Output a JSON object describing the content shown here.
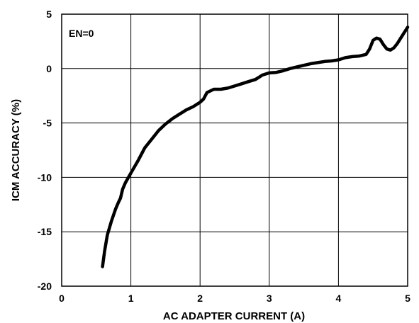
{
  "chart_data": {
    "type": "line",
    "title": "",
    "xlabel": "AC ADAPTER CURRENT (A)",
    "ylabel": "ICM ACCURACY (%)",
    "xlim": [
      0,
      5
    ],
    "ylim": [
      -20,
      5
    ],
    "x_ticks": [
      0,
      1,
      2,
      3,
      4,
      5
    ],
    "y_ticks": [
      -20,
      -15,
      -10,
      -5,
      0,
      5
    ],
    "x_tick_labels": [
      "0",
      "1",
      "2",
      "3",
      "4",
      "5"
    ],
    "y_tick_labels": [
      "-20",
      "-15",
      "-10",
      "-5",
      "0",
      "5"
    ],
    "grid": true,
    "annotation": "EN=0",
    "line_color": "#000000",
    "series": [
      {
        "x": [
          0.59,
          0.62,
          0.66,
          0.72,
          0.78,
          0.82,
          0.85,
          0.88,
          0.92,
          1.0,
          1.1,
          1.2,
          1.3,
          1.4,
          1.5,
          1.6,
          1.7,
          1.8,
          1.9,
          2.0,
          2.05,
          2.1,
          2.2,
          2.3,
          2.4,
          2.5,
          2.6,
          2.7,
          2.8,
          2.85,
          2.9,
          3.0,
          3.1,
          3.2,
          3.3,
          3.4,
          3.5,
          3.6,
          3.7,
          3.8,
          3.9,
          4.0,
          4.1,
          4.2,
          4.3,
          4.4,
          4.45,
          4.5,
          4.55,
          4.6,
          4.65,
          4.7,
          4.75,
          4.8,
          4.85,
          4.9,
          4.95,
          5.0
        ],
        "y": [
          -18.2,
          -16.8,
          -15.3,
          -14.0,
          -12.9,
          -12.3,
          -11.9,
          -11.1,
          -10.5,
          -9.6,
          -8.5,
          -7.3,
          -6.5,
          -5.7,
          -5.1,
          -4.6,
          -4.2,
          -3.8,
          -3.5,
          -3.1,
          -2.8,
          -2.2,
          -1.9,
          -1.9,
          -1.8,
          -1.6,
          -1.4,
          -1.2,
          -1.0,
          -0.8,
          -0.6,
          -0.4,
          -0.35,
          -0.2,
          0.0,
          0.15,
          0.3,
          0.45,
          0.55,
          0.65,
          0.7,
          0.8,
          1.0,
          1.1,
          1.15,
          1.3,
          1.8,
          2.6,
          2.8,
          2.7,
          2.2,
          1.8,
          1.7,
          1.9,
          2.3,
          2.8,
          3.3,
          3.8
        ]
      }
    ]
  }
}
